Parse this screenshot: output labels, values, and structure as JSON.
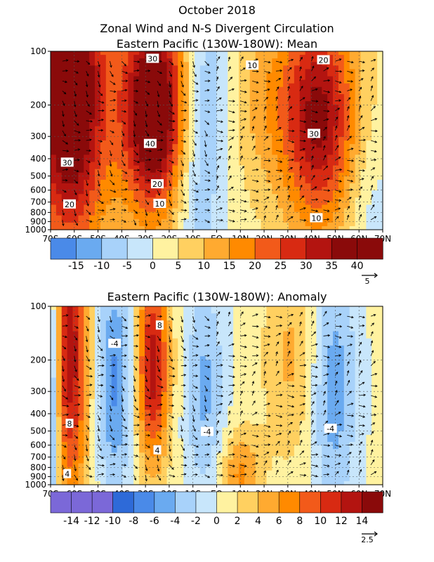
{
  "header": {
    "title_line1": "October 2018",
    "title_line2": "Zonal Wind and N-S Divergent Circulation"
  },
  "colors": {
    "neg": [
      "#7b68d8",
      "#2e6ad8",
      "#4a8ae8",
      "#6aaaf0",
      "#a8d2fa",
      "#c8e6fb"
    ],
    "pos": [
      "#fff2a0",
      "#ffd060",
      "#ffaa30",
      "#ff8a00",
      "#f25a1a",
      "#d82a12",
      "#b31410",
      "#8a0a0a"
    ],
    "contour": "#000000"
  },
  "chart_data": [
    {
      "type": "heatmap",
      "title": "Eastern Pacific (130W-180W): Mean",
      "x_ticks": [
        "70S",
        "60S",
        "50S",
        "40S",
        "30S",
        "20S",
        "10S",
        "EQ",
        "10N",
        "20N",
        "30N",
        "40N",
        "50N",
        "60N",
        "70N"
      ],
      "x_range": [
        -70,
        70
      ],
      "y_ticks": [
        "100",
        "200",
        "300",
        "400",
        "500",
        "600",
        "700",
        "800",
        "900",
        "1000"
      ],
      "y_range": [
        100,
        1000
      ],
      "y_scale": "log",
      "colorbar": {
        "levels": [
          -20,
          -15,
          -10,
          -5,
          0,
          5,
          10,
          15,
          20,
          25,
          30,
          35,
          40,
          45
        ],
        "labels": [
          "-15",
          "-10",
          "-5",
          "0",
          "5",
          "10",
          "15",
          "20",
          "25",
          "30",
          "35",
          "40"
        ]
      },
      "contour_labels": [
        {
          "text": "30",
          "x": -27,
          "y": 110
        },
        {
          "text": "10",
          "x": 15,
          "y": 120
        },
        {
          "text": "20",
          "x": 45,
          "y": 112
        },
        {
          "text": "40",
          "x": -28,
          "y": 330
        },
        {
          "text": "30",
          "x": 41,
          "y": 290
        },
        {
          "text": "30",
          "x": -63,
          "y": 420
        },
        {
          "text": "20",
          "x": -25,
          "y": 555
        },
        {
          "text": "10",
          "x": -24,
          "y": 715
        },
        {
          "text": "20",
          "x": -62,
          "y": 720
        },
        {
          "text": "10",
          "x": 42,
          "y": 860
        }
      ],
      "vector_ref": "5",
      "features": [
        {
          "x": -62,
          "p": 170,
          "sx": 11,
          "sp": 1.4,
          "amp": 46
        },
        {
          "x": -26,
          "p": 215,
          "sx": 10,
          "sp": 0.95,
          "amp": 46
        },
        {
          "x": 43,
          "p": 235,
          "sx": 11,
          "sp": 1.0,
          "amp": 34
        },
        {
          "x": 20,
          "p": 180,
          "sx": 10,
          "sp": 0.8,
          "amp": 8
        },
        {
          "x": -8,
          "p": 380,
          "sx": 8,
          "sp": 1.3,
          "amp": -14
        },
        {
          "x": -2,
          "p": 130,
          "sx": 6,
          "sp": 0.7,
          "amp": -5
        },
        {
          "x": 65,
          "p": 900,
          "sx": 8,
          "sp": 0.9,
          "amp": -6
        }
      ],
      "base": 3
    },
    {
      "type": "heatmap",
      "title": "Eastern Pacific (130W-180W): Anomaly",
      "x_ticks": [
        "70S",
        "60S",
        "50S",
        "40S",
        "30S",
        "20S",
        "10S",
        "EQ",
        "10N",
        "20N",
        "30N",
        "40N",
        "50N",
        "60N",
        "70N"
      ],
      "x_range": [
        -70,
        70
      ],
      "y_ticks": [
        "100",
        "200",
        "300",
        "400",
        "500",
        "600",
        "700",
        "800",
        "900",
        "1000"
      ],
      "y_range": [
        100,
        1000
      ],
      "y_scale": "log",
      "colorbar": {
        "levels": [
          -16,
          -14,
          -12,
          -10,
          -8,
          -6,
          -4,
          -2,
          0,
          2,
          4,
          6,
          8,
          10,
          12,
          14,
          16
        ],
        "labels": [
          "-14",
          "-12",
          "-10",
          "-8",
          "-6",
          "-4",
          "-2",
          "0",
          "2",
          "4",
          "6",
          "8",
          "10",
          "12",
          "14"
        ]
      },
      "contour_labels": [
        {
          "text": "8",
          "x": -24,
          "y": 128
        },
        {
          "text": "-4",
          "x": -43,
          "y": 162
        },
        {
          "text": "8",
          "x": -62,
          "y": 455
        },
        {
          "text": "-4",
          "x": -4,
          "y": 505
        },
        {
          "text": "-4",
          "x": 48,
          "y": 485
        },
        {
          "text": "4",
          "x": -25,
          "y": 640
        },
        {
          "text": "4",
          "x": -63,
          "y": 870
        }
      ],
      "vector_ref": "2.5",
      "features": [
        {
          "x": -62,
          "p": 190,
          "sx": 6,
          "sp": 1.4,
          "amp": 13
        },
        {
          "x": -27,
          "p": 220,
          "sx": 5,
          "sp": 0.9,
          "amp": 13
        },
        {
          "x": -43,
          "p": 260,
          "sx": 6,
          "sp": 1.0,
          "amp": -7
        },
        {
          "x": -5,
          "p": 290,
          "sx": 6,
          "sp": 1.0,
          "amp": -5
        },
        {
          "x": 32,
          "p": 190,
          "sx": 9,
          "sp": 1.0,
          "amp": 4
        },
        {
          "x": 49,
          "p": 280,
          "sx": 7,
          "sp": 1.2,
          "amp": -6
        },
        {
          "x": 10,
          "p": 880,
          "sx": 6,
          "sp": 0.4,
          "amp": 6
        },
        {
          "x": -70,
          "p": 300,
          "sx": 3,
          "sp": 1.3,
          "amp": -10
        }
      ],
      "base": 0.5
    }
  ]
}
